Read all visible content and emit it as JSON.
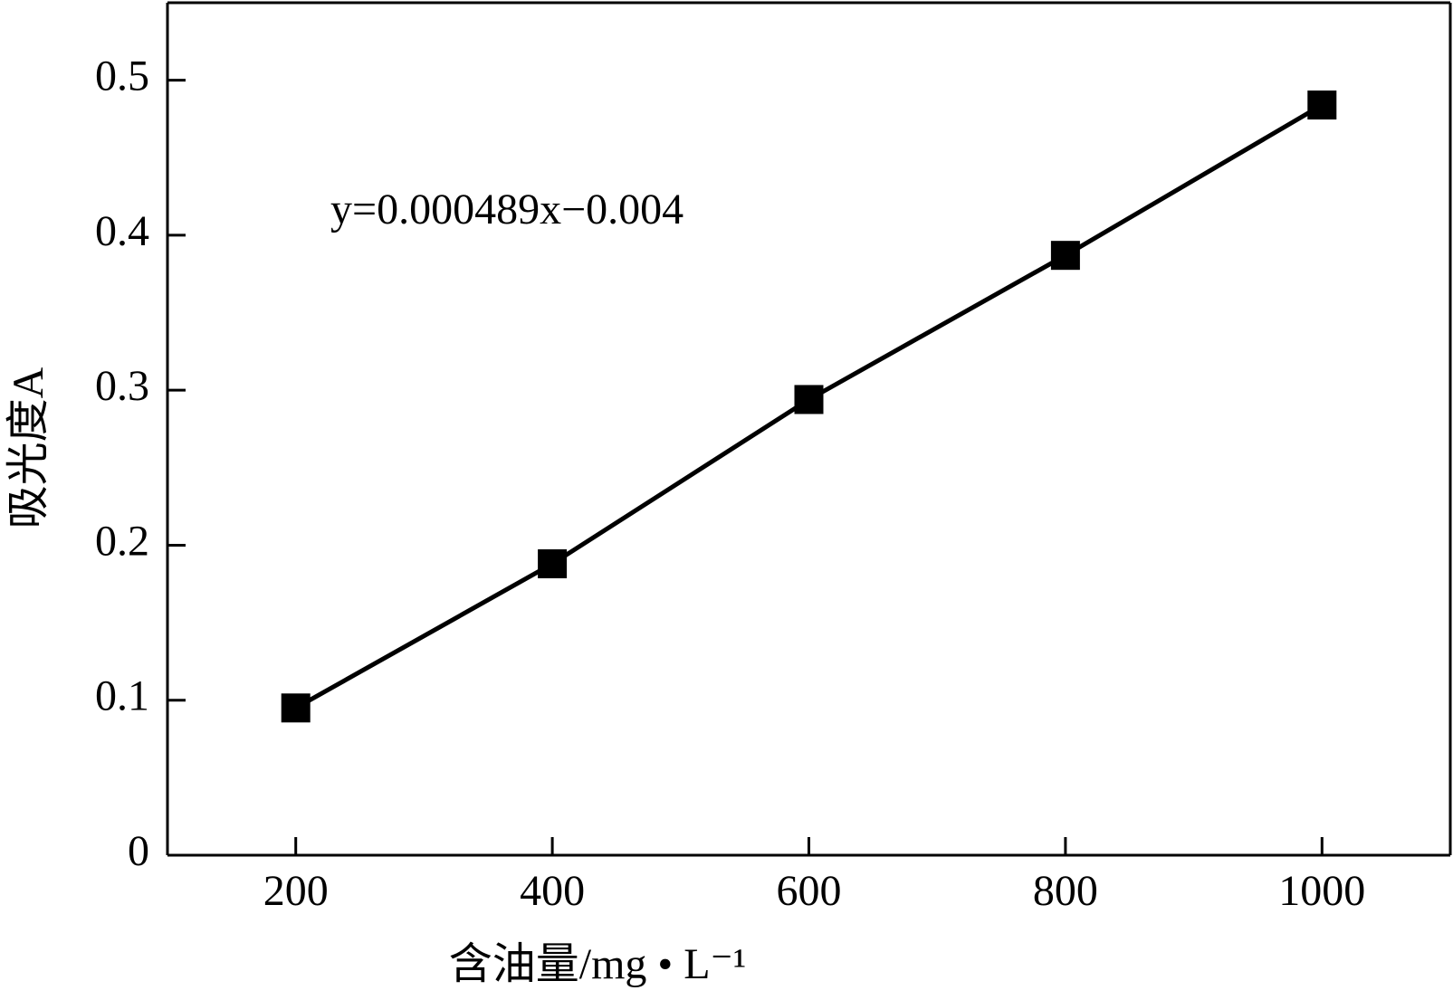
{
  "chart_data": {
    "type": "line",
    "x": [
      200,
      400,
      600,
      800,
      1000
    ],
    "series": [
      {
        "color": "#000000",
        "values": [
          0.095,
          0.188,
          0.294,
          0.387,
          0.484
        ]
      }
    ],
    "xlim": [
      100,
      1100
    ],
    "xticks": [
      200,
      400,
      600,
      800,
      1000
    ],
    "ylim": [
      0,
      0.55
    ],
    "yticks": [
      0,
      0.1,
      0.2,
      0.3,
      0.4,
      0.5
    ],
    "xlabel": "含油量/mg • L⁻¹",
    "ylabel": "吸光度A",
    "annotation": "y=0.000489x−0.004",
    "grid": false
  }
}
